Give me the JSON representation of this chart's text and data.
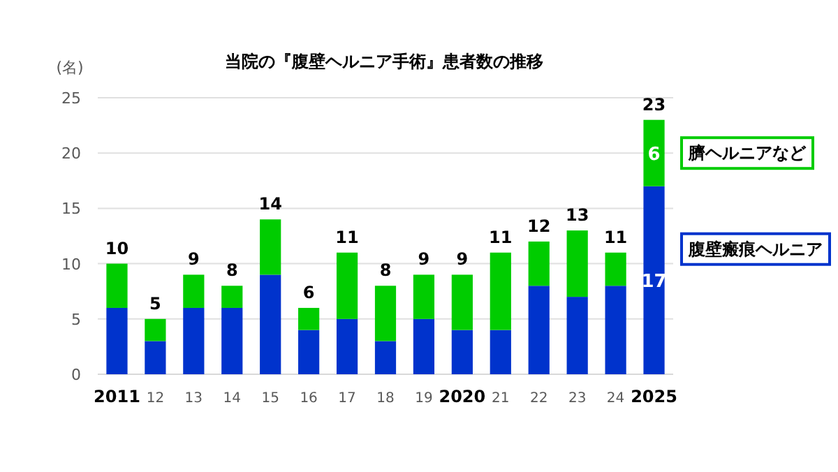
{
  "chart_data": {
    "type": "bar",
    "stacked": true,
    "title": "当院の『腹壁ヘルニア手術』患者数の推移",
    "ylabel": "(名)",
    "categories": [
      "2011",
      "12",
      "13",
      "14",
      "15",
      "16",
      "17",
      "18",
      "19",
      "2020",
      "21",
      "22",
      "23",
      "24",
      "2025"
    ],
    "series": [
      {
        "name": "腹壁瘢痕ヘルニア",
        "color": "#0033cc",
        "values": [
          6,
          3,
          6,
          6,
          9,
          4,
          5,
          3,
          5,
          4,
          4,
          8,
          7,
          8,
          17
        ],
        "value_labels": [
          null,
          null,
          null,
          null,
          null,
          null,
          null,
          null,
          null,
          null,
          null,
          null,
          null,
          null,
          "17"
        ]
      },
      {
        "name": "臍ヘルニアなど",
        "color": "#00cc00",
        "values": [
          4,
          2,
          3,
          2,
          5,
          2,
          6,
          5,
          4,
          5,
          7,
          4,
          6,
          3,
          6
        ],
        "value_labels": [
          null,
          null,
          null,
          null,
          null,
          null,
          null,
          null,
          null,
          null,
          null,
          null,
          null,
          null,
          "6"
        ]
      }
    ],
    "totals": [
      "10",
      "5",
      "9",
      "8",
      "14",
      "6",
      "11",
      "8",
      "9",
      "9",
      "11",
      "12",
      "13",
      "11",
      "23"
    ],
    "ylim": [
      0,
      25
    ],
    "yticks": [
      0,
      5,
      10,
      15,
      20,
      25
    ],
    "grid": "y",
    "legend": "right"
  }
}
